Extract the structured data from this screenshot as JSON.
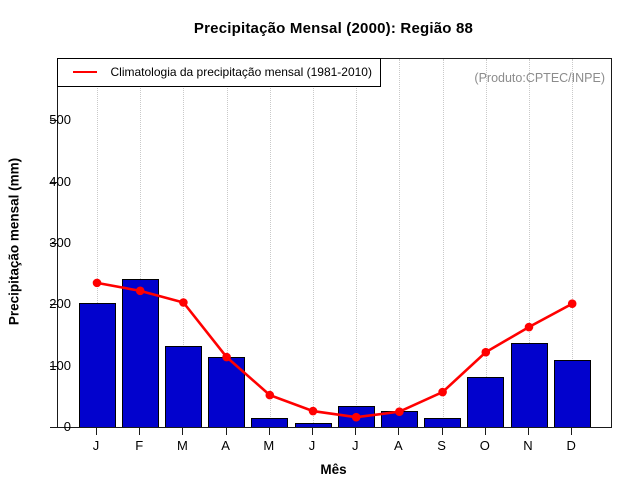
{
  "title": "Precipitação Mensal (2000): Região 88",
  "annotation": "(Produto:CPTEC/INPE)",
  "legend": {
    "label": "Climatologia da precipitação mensal (1981-2010)"
  },
  "chart_data": {
    "type": "bar",
    "title": "Precipitação Mensal (2000): Região 88",
    "categories": [
      "J",
      "F",
      "M",
      "A",
      "M",
      "J",
      "J",
      "A",
      "S",
      "O",
      "N",
      "D"
    ],
    "series": [
      {
        "name": "Precipitação mensal (2000)",
        "type": "bar",
        "color": "#0202cd",
        "values": [
          202,
          242,
          132,
          114,
          14,
          7,
          34,
          26,
          14,
          81,
          137,
          109
        ]
      },
      {
        "name": "Climatologia da precipitação mensal (1981-2010)",
        "type": "line",
        "color": "#ff0000",
        "values": [
          235,
          222,
          203,
          114,
          52,
          26,
          16,
          25,
          57,
          122,
          163,
          201
        ]
      }
    ],
    "xlabel": "Mês",
    "ylabel": "Precipitação mensal (mm)",
    "ylim": [
      0,
      600
    ],
    "yticks": [
      0,
      100,
      200,
      300,
      400,
      500
    ],
    "grid": "vertical-dotted",
    "legend_position": "top-left",
    "annotation": "(Produto:CPTEC/INPE)"
  }
}
